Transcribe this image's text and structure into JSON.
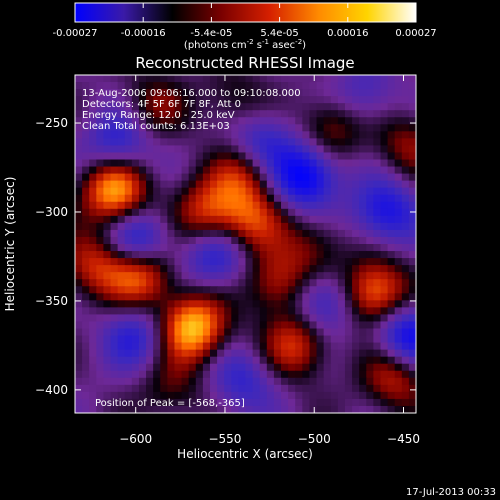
{
  "colorbar": {
    "ticks": [
      "-0.00027",
      "-0.00016",
      "-5.4e-05",
      "5.4e-05",
      "0.00016",
      "0.00027"
    ],
    "units_main": "(photons cm",
    "units_sup1": "-2",
    "units_mid": " s",
    "units_sup2": "-1",
    "units_end": " asec",
    "units_sup3": "-2",
    "units_close": ")",
    "range": [
      -0.00027,
      0.00027
    ],
    "colors": [
      "#0000ff",
      "#3a1aa8",
      "#000000",
      "#7a0000",
      "#d62000",
      "#ff8a00",
      "#ffd400",
      "#ffffff"
    ]
  },
  "chart_data": {
    "type": "heatmap",
    "title": "Reconstructed RHESSI Image",
    "xlabel": "Heliocentric X (arcsec)",
    "ylabel": "Heliocentric Y (arcsec)",
    "xlim": [
      -634,
      -443
    ],
    "ylim": [
      -413,
      -223
    ],
    "x_ticks": [
      -600,
      -550,
      -500,
      -450
    ],
    "x_tick_labels": [
      "−600",
      "−550",
      "−500",
      "−450"
    ],
    "y_ticks": [
      -250,
      -300,
      -350,
      -400
    ],
    "y_tick_labels": [
      "−250",
      "−300",
      "−350",
      "−400"
    ],
    "annotations": [
      "13-Aug-2006 09:06:16.000 to 09:10:08.000",
      "Detectors: 4F 5F 6F 7F 8F, Att 0",
      "Energy Range: 12.0 - 25.0 keV",
      "Clean     Total counts: 6.13E+03"
    ],
    "peak_label": "Position of Peak = [-568,-365]",
    "peak": [
      -568,
      -365
    ],
    "blobs": [
      {
        "x": -568,
        "y": -365,
        "v": 1.0
      },
      {
        "x": -612,
        "y": -288,
        "v": 0.92
      },
      {
        "x": -623,
        "y": -330,
        "v": 0.55
      },
      {
        "x": -597,
        "y": -335,
        "v": 0.8
      },
      {
        "x": -560,
        "y": -300,
        "v": 0.6
      },
      {
        "x": -535,
        "y": -305,
        "v": 0.55
      },
      {
        "x": -540,
        "y": -280,
        "v": 0.5
      },
      {
        "x": -520,
        "y": -340,
        "v": 0.55
      },
      {
        "x": -510,
        "y": -375,
        "v": 0.6
      },
      {
        "x": -466,
        "y": -345,
        "v": 0.85
      },
      {
        "x": -490,
        "y": -252,
        "v": 0.45
      },
      {
        "x": -448,
        "y": -262,
        "v": 0.4
      },
      {
        "x": -455,
        "y": -393,
        "v": 0.55
      },
      {
        "x": -590,
        "y": -240,
        "v": 0.35
      },
      {
        "x": -545,
        "y": -238,
        "v": 0.3
      },
      {
        "x": -580,
        "y": -400,
        "v": 0.3
      },
      {
        "x": -500,
        "y": -320,
        "v": 0.35
      },
      {
        "x": -495,
        "y": -350,
        "v": -0.55
      },
      {
        "x": -505,
        "y": -280,
        "v": -0.8
      },
      {
        "x": -598,
        "y": -318,
        "v": -0.65
      },
      {
        "x": -610,
        "y": -262,
        "v": -0.5
      },
      {
        "x": -448,
        "y": -370,
        "v": -0.7
      },
      {
        "x": -460,
        "y": -300,
        "v": -0.6
      },
      {
        "x": -555,
        "y": -325,
        "v": -0.5
      },
      {
        "x": -600,
        "y": -370,
        "v": -0.45
      },
      {
        "x": -530,
        "y": -260,
        "v": -0.45
      },
      {
        "x": -540,
        "y": -395,
        "v": -0.4
      },
      {
        "x": -472,
        "y": -235,
        "v": -0.35
      }
    ]
  },
  "footer": {
    "timestamp": "17-Jul-2013 00:33"
  }
}
